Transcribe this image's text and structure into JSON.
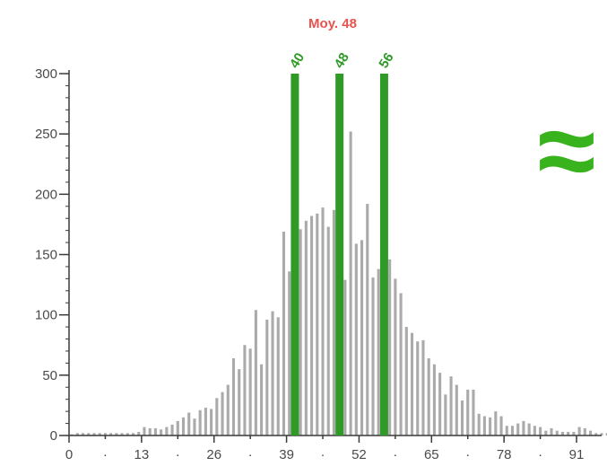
{
  "chart_data": {
    "type": "bar",
    "title": "Moy. 48",
    "xlabel": "",
    "ylabel": "",
    "xlim": [
      0,
      98
    ],
    "ylim": [
      0,
      300
    ],
    "y_ticks": [
      "0",
      "50",
      "100",
      "150",
      "200",
      "250",
      "300"
    ],
    "x_tick_labels": [
      {
        "value": 0,
        "label": "0"
      },
      {
        "value": 6.5,
        "label": "·"
      },
      {
        "value": 13,
        "label": "13"
      },
      {
        "value": 19.5,
        "label": "·"
      },
      {
        "value": 26,
        "label": "26"
      },
      {
        "value": 32.5,
        "label": "·"
      },
      {
        "value": 39,
        "label": "39"
      },
      {
        "value": 45.5,
        "label": "·"
      },
      {
        "value": 52,
        "label": "52"
      },
      {
        "value": 58.5,
        "label": "·"
      },
      {
        "value": 65,
        "label": "65"
      },
      {
        "value": 71.5,
        "label": "·"
      },
      {
        "value": 78,
        "label": "78"
      },
      {
        "value": 84.5,
        "label": "·"
      },
      {
        "value": 91,
        "label": "91"
      },
      {
        "value": 97.5,
        "label": "·"
      }
    ],
    "x": [
      0,
      1,
      2,
      3,
      4,
      5,
      6,
      7,
      8,
      9,
      10,
      11,
      12,
      13,
      14,
      15,
      16,
      17,
      18,
      19,
      20,
      21,
      22,
      23,
      24,
      25,
      26,
      27,
      28,
      29,
      30,
      31,
      32,
      33,
      34,
      35,
      36,
      37,
      38,
      39,
      40,
      41,
      42,
      43,
      44,
      45,
      46,
      47,
      48,
      49,
      50,
      51,
      52,
      53,
      54,
      55,
      56,
      57,
      58,
      59,
      60,
      61,
      62,
      63,
      64,
      65,
      66,
      67,
      68,
      69,
      70,
      71,
      72,
      73,
      74,
      75,
      76,
      77,
      78,
      79,
      80,
      81,
      82,
      83,
      84,
      85,
      86,
      87,
      88,
      89,
      90,
      91,
      92,
      93,
      94,
      95,
      96,
      97
    ],
    "values": [
      1,
      2,
      2,
      2,
      2,
      2,
      2,
      2,
      2,
      2,
      2,
      2,
      3,
      7,
      6,
      6,
      5,
      7,
      9,
      12,
      15,
      19,
      14,
      21,
      23,
      22,
      31,
      36,
      42,
      64,
      55,
      75,
      72,
      104,
      59,
      96,
      103,
      98,
      169,
      136,
      160,
      171,
      178,
      182,
      184,
      189,
      173,
      187,
      211,
      129,
      252,
      159,
      162,
      192,
      131,
      138,
      148,
      146,
      130,
      118,
      90,
      85,
      78,
      79,
      64,
      59,
      52,
      34,
      49,
      42,
      29,
      38,
      38,
      18,
      16,
      15,
      20,
      16,
      8,
      8,
      10,
      12,
      10,
      8,
      7,
      4,
      6,
      4,
      3,
      3,
      3,
      7,
      6,
      4,
      2,
      2,
      2,
      1
    ],
    "bar_color": "#aaaaaa",
    "markers": [
      {
        "x": 40,
        "label": "40"
      },
      {
        "x": 48,
        "label": "48"
      },
      {
        "x": 56,
        "label": "56"
      }
    ],
    "marker_color": "#2f9a26",
    "title_color": "#e8534f",
    "grid": false,
    "legend": "none"
  },
  "annotations": {
    "approx_symbol": "≈",
    "approx_color": "#39b31d"
  }
}
